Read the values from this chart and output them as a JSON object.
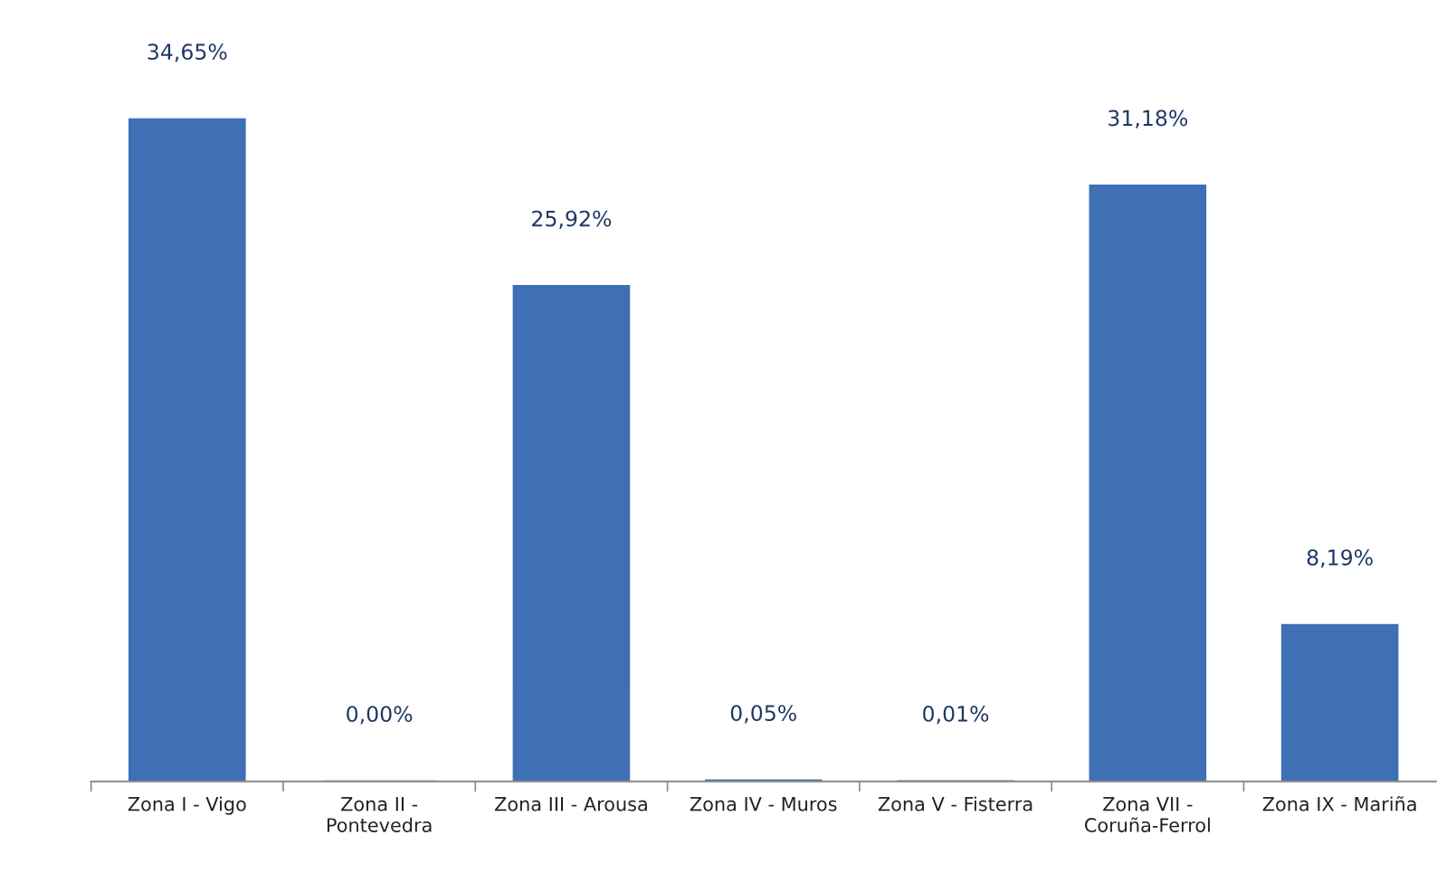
{
  "chart_data": {
    "type": "bar",
    "categories": [
      "Zona I - Vigo",
      "Zona II -\nPontevedra",
      "Zona III - Arousa",
      "Zona IV - Muros",
      "Zona V - Fisterra",
      "Zona VII -\nCoruña-Ferrol",
      "Zona IX - Mariña"
    ],
    "values": [
      34.65,
      0.0,
      25.92,
      0.05,
      0.01,
      31.18,
      8.19
    ],
    "value_labels": [
      "34,65%",
      "0,00%",
      "25,92%",
      "0,05%",
      "0,01%",
      "31,18%",
      "8,19%"
    ],
    "color": "#3f6fb5",
    "grid": false,
    "legend": false
  }
}
